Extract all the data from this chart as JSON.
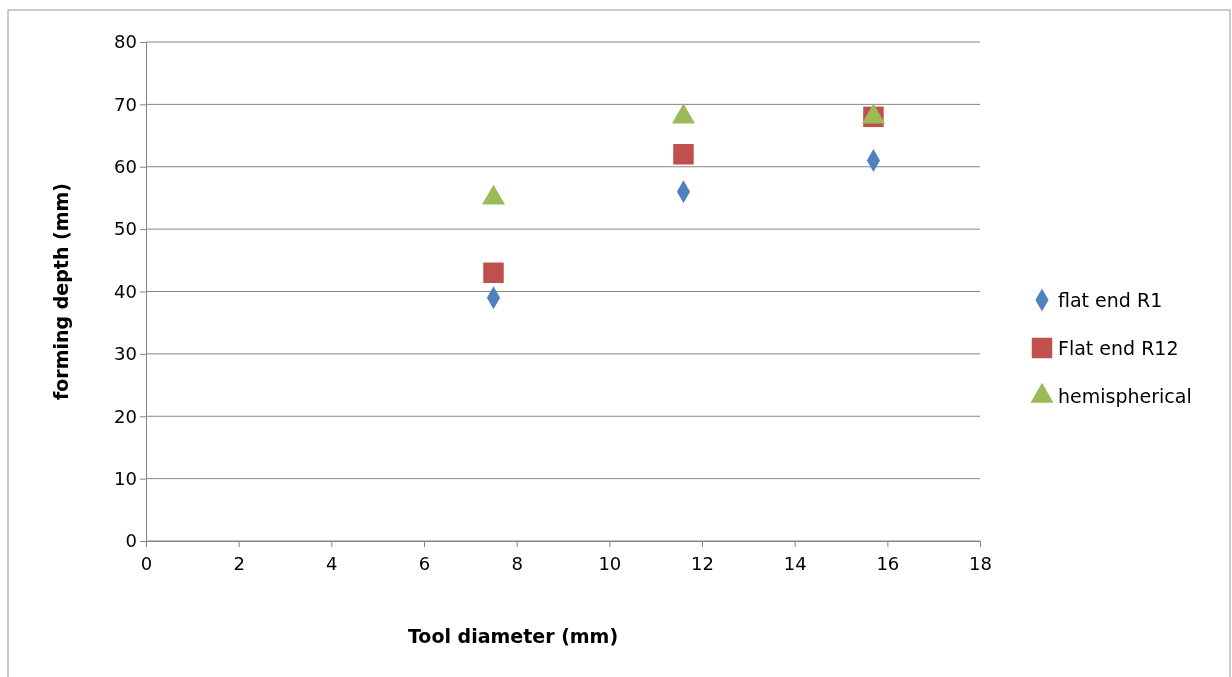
{
  "chart_data": {
    "type": "scatter",
    "xlabel": "Tool  diameter (mm)",
    "ylabel": "forming depth (mm)",
    "x": [
      7.5,
      11.6,
      15.7
    ],
    "series": [
      {
        "name": "flat end R1",
        "color": "#4f81bd",
        "marker": "diamond",
        "values": [
          39,
          56,
          61
        ]
      },
      {
        "name": "Flat end R12",
        "color": "#c0504d",
        "marker": "square",
        "values": [
          43,
          62,
          68
        ]
      },
      {
        "name": "hemispherical",
        "color": "#9bbb59",
        "marker": "triangle",
        "values": [
          55,
          68,
          68
        ]
      }
    ],
    "xlim": [
      0,
      18
    ],
    "xticks": [
      0,
      2,
      4,
      6,
      8,
      10,
      12,
      14,
      16,
      18
    ],
    "ylim": [
      0,
      80
    ],
    "yticks": [
      0,
      10,
      20,
      30,
      40,
      50,
      60,
      70,
      80
    ],
    "grid": "y",
    "legend": "right"
  }
}
